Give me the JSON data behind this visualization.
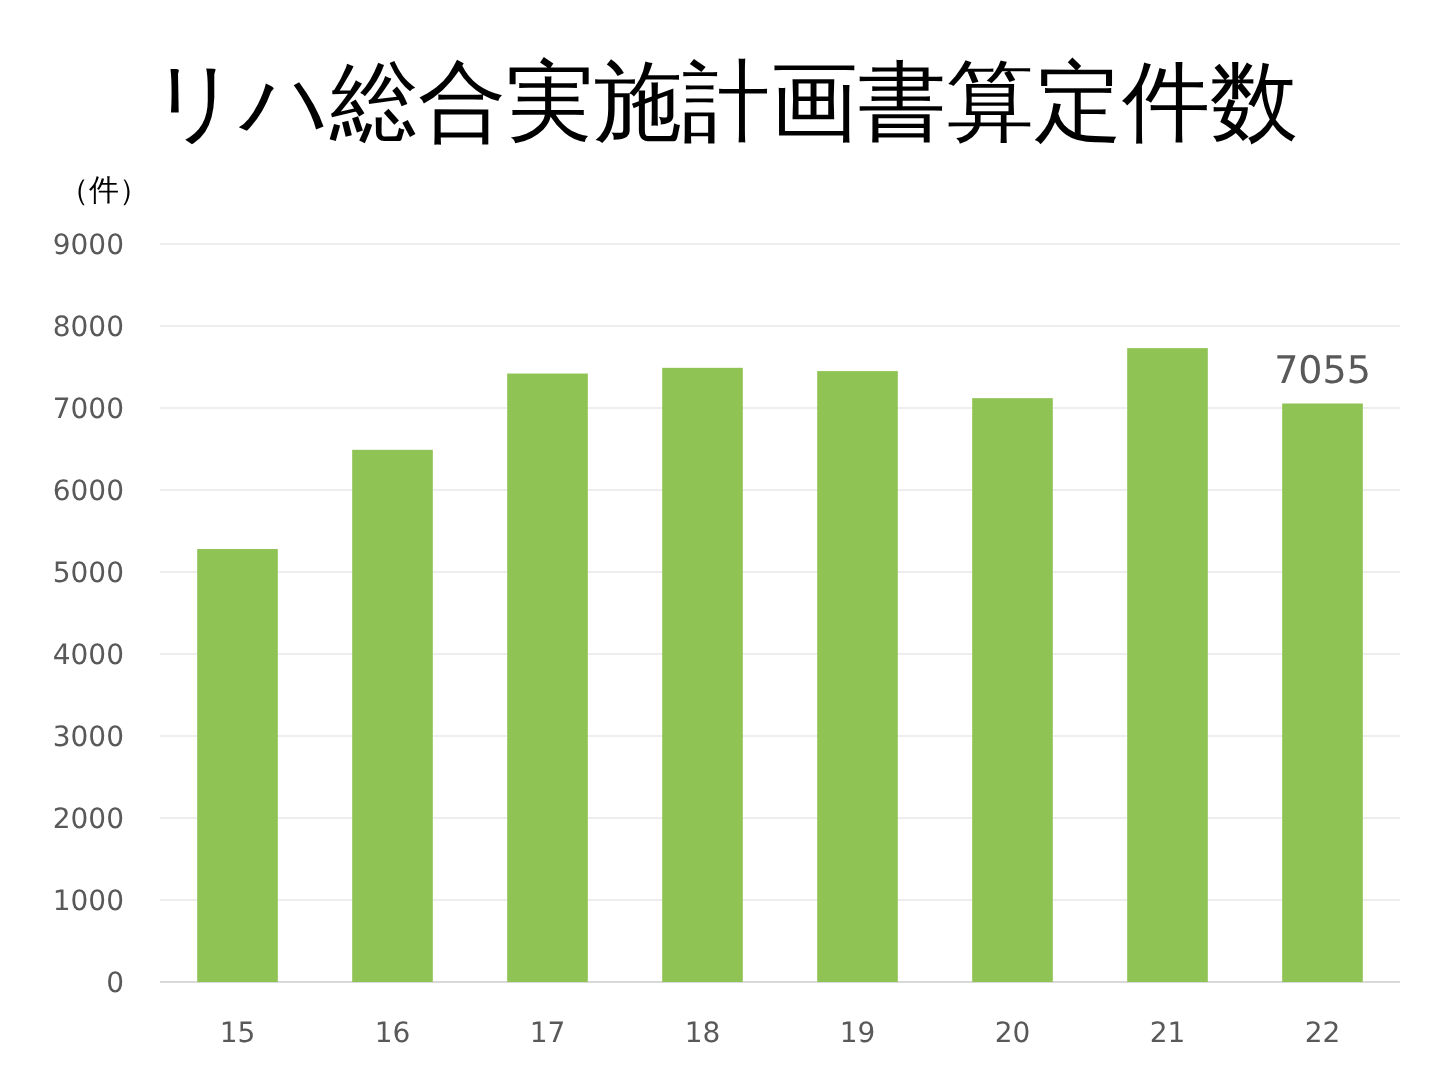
{
  "chart_data": {
    "type": "bar",
    "title": "リハ総合実施計画書算定件数",
    "ylabel": "（件）",
    "categories": [
      "15",
      "16",
      "17",
      "18",
      "19",
      "20",
      "21",
      "22"
    ],
    "values": [
      5280,
      6490,
      7420,
      7490,
      7450,
      7120,
      7730,
      7055
    ],
    "value_labels": [
      null,
      null,
      null,
      null,
      null,
      null,
      null,
      "7055"
    ],
    "color": "#8fc353",
    "ylim": [
      0,
      9000
    ],
    "yticks": [
      0,
      1000,
      2000,
      3000,
      4000,
      5000,
      6000,
      7000,
      8000,
      9000
    ],
    "grid": "y"
  }
}
